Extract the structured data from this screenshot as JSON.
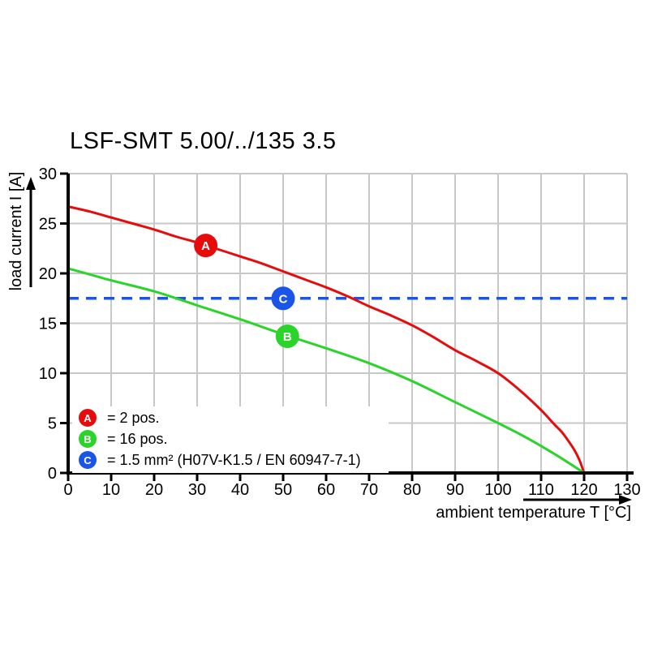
{
  "title": "LSF-SMT 5.00/../135 3.5",
  "chart_data": {
    "type": "line",
    "title": "LSF-SMT 5.00/../135 3.5",
    "xlabel": "ambient temperature T [°C]",
    "ylabel": "load current I [A]",
    "xlim": [
      0,
      130
    ],
    "ylim": [
      0,
      30
    ],
    "xticks": [
      0,
      10,
      20,
      30,
      40,
      50,
      60,
      70,
      80,
      90,
      100,
      110,
      120,
      130
    ],
    "yticks": [
      0,
      5,
      10,
      15,
      20,
      25,
      30
    ],
    "grid": true,
    "grid_color": "#c8c8c8",
    "axis_color": "#000000",
    "series": [
      {
        "id": "A",
        "name": "A = 2 pos.",
        "color": "#e60c0c",
        "style": "solid",
        "points": [
          [
            0,
            26.7
          ],
          [
            5,
            26.2
          ],
          [
            10,
            25.6
          ],
          [
            15,
            25.0
          ],
          [
            20,
            24.4
          ],
          [
            25,
            23.7
          ],
          [
            30,
            23.1
          ],
          [
            35,
            22.4
          ],
          [
            40,
            21.7
          ],
          [
            45,
            21.0
          ],
          [
            50,
            20.2
          ],
          [
            55,
            19.4
          ],
          [
            60,
            18.6
          ],
          [
            65,
            17.7
          ],
          [
            70,
            16.7
          ],
          [
            75,
            15.8
          ],
          [
            80,
            14.8
          ],
          [
            85,
            13.6
          ],
          [
            90,
            12.3
          ],
          [
            95,
            11.2
          ],
          [
            100,
            10.0
          ],
          [
            105,
            8.3
          ],
          [
            110,
            6.3
          ],
          [
            113,
            4.9
          ],
          [
            115,
            4.0
          ],
          [
            117,
            2.8
          ],
          [
            118,
            2.1
          ],
          [
            119,
            1.2
          ],
          [
            120,
            0
          ]
        ]
      },
      {
        "id": "B",
        "name": "B = 16 pos.",
        "color": "#2bd42b",
        "style": "solid",
        "points": [
          [
            0,
            20.5
          ],
          [
            10,
            19.3
          ],
          [
            20,
            18.2
          ],
          [
            30,
            16.8
          ],
          [
            40,
            15.4
          ],
          [
            50,
            13.9
          ],
          [
            60,
            12.5
          ],
          [
            70,
            11.0
          ],
          [
            80,
            9.2
          ],
          [
            90,
            7.1
          ],
          [
            100,
            5.0
          ],
          [
            105,
            3.9
          ],
          [
            110,
            2.7
          ],
          [
            115,
            1.4
          ],
          [
            120,
            0
          ]
        ]
      },
      {
        "id": "C",
        "name": "C = 1.5 mm² (H07V-K1.5 / EN 60947-7-1)",
        "color": "#1a55e8",
        "style": "dashed",
        "points": [
          [
            0,
            17.5
          ],
          [
            130,
            17.5
          ]
        ]
      }
    ],
    "markers": [
      {
        "label": "A",
        "x": 32,
        "y": 22.8,
        "color": "#e60c0c"
      },
      {
        "label": "B",
        "x": 51,
        "y": 13.7,
        "color": "#2bd42b"
      },
      {
        "label": "C",
        "x": 50,
        "y": 17.5,
        "color": "#1a55e8"
      }
    ]
  },
  "legend": {
    "items": [
      {
        "letter": "A",
        "color": "#e60c0c",
        "text": "= 2 pos."
      },
      {
        "letter": "B",
        "color": "#2bd42b",
        "text": "= 16 pos."
      },
      {
        "letter": "C",
        "color": "#1a55e8",
        "text": "= 1.5 mm² (H07V-K1.5 / EN 60947-7-1)"
      }
    ]
  }
}
